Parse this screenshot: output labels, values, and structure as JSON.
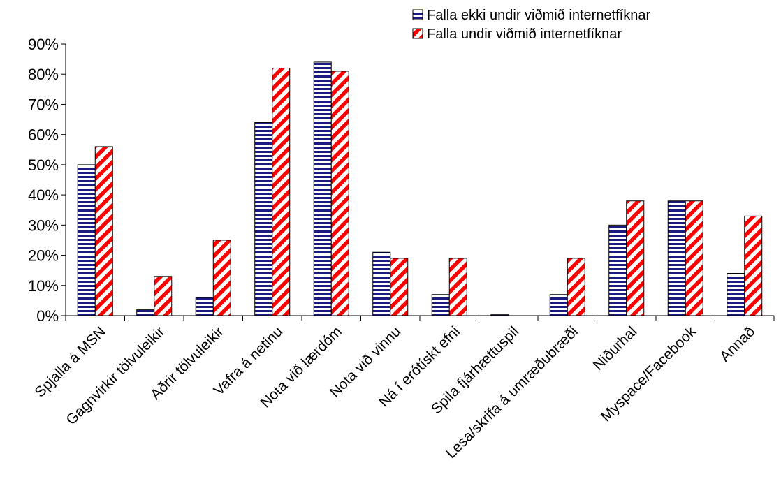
{
  "chart_data": {
    "type": "bar",
    "title": "",
    "xlabel": "",
    "ylabel": "",
    "categories": [
      "Spjalla á MSN",
      "Gagnvirkir tölvuleikir",
      "Aðrir tölvuleikir",
      "Vafra á netinu",
      "Nota við lærdóm",
      "Nota við vinnu",
      "Ná í erótískt efni",
      "Spila fjárhættuspil",
      "Lesa/skrifa á umræðubræði",
      "Niðurhal",
      "Myspace/Facebook",
      "Annað"
    ],
    "series": [
      {
        "name": "Falla ekki undir viðmið internetfíknar",
        "values": [
          50,
          2,
          6,
          64,
          84,
          21,
          7,
          0.3,
          7,
          30,
          38,
          14
        ],
        "color": "#1a1a80",
        "pattern": "horizontal-stripes"
      },
      {
        "name": "Falla undir viðmið internetfíknar",
        "values": [
          56,
          13,
          25,
          82,
          81,
          19,
          19,
          0,
          19,
          38,
          38,
          33
        ],
        "color": "#ff0000",
        "pattern": "diagonal-stripes"
      }
    ],
    "ylim": [
      0,
      90
    ],
    "yticks": [
      {
        "value": 0,
        "label": "0%"
      },
      {
        "value": 10,
        "label": "10%"
      },
      {
        "value": 20,
        "label": "20%"
      },
      {
        "value": 30,
        "label": "30%"
      },
      {
        "value": 40,
        "label": "40%"
      },
      {
        "value": 50,
        "label": "50%"
      },
      {
        "value": 60,
        "label": "60%"
      },
      {
        "value": 70,
        "label": "70%"
      },
      {
        "value": 80,
        "label": "80%"
      },
      {
        "value": 90,
        "label": "90%"
      }
    ],
    "grid": false,
    "legend_position": "top-right"
  }
}
